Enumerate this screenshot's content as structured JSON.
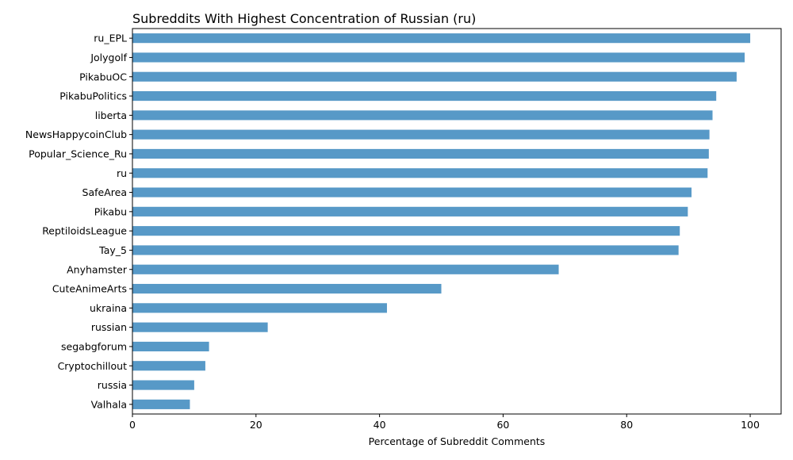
{
  "chart_data": {
    "type": "bar",
    "orientation": "horizontal",
    "title": "Subreddits With Highest Concentration of Russian (ru)",
    "xlabel": "Percentage of Subreddit Comments",
    "ylabel": "",
    "xlim": [
      0,
      105
    ],
    "xticks": [
      0,
      20,
      40,
      60,
      80,
      100
    ],
    "grid": false,
    "bar_color": "#5799c7",
    "categories": [
      "ru_EPL",
      "Jolygolf",
      "PikabuOC",
      "PikabuPolitics",
      "liberta",
      "NewsHappycoinClub",
      "Popular_Science_Ru",
      "ru",
      "SafeArea",
      "Pikabu",
      "ReptiloidsLeague",
      "Tay_5",
      "Anyhamster",
      "CuteAnimeArts",
      "ukraina",
      "russian",
      "segabgforum",
      "Cryptochillout",
      "russia",
      "Valhala"
    ],
    "values": [
      100,
      99.1,
      97.8,
      94.5,
      93.9,
      93.4,
      93.3,
      93.1,
      90.5,
      89.9,
      88.6,
      88.4,
      69.0,
      50.0,
      41.2,
      21.9,
      12.4,
      11.8,
      10.0,
      9.3
    ]
  }
}
